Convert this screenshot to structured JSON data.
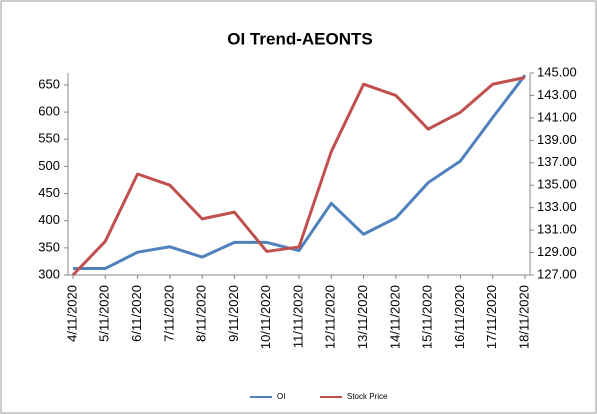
{
  "chart_data": {
    "type": "line",
    "title": "OI Trend-AEONTS",
    "categories": [
      "4/11/2020",
      "5/11/2020",
      "6/11/2020",
      "7/11/2020",
      "8/11/2020",
      "9/11/2020",
      "10/11/2020",
      "11/11/2020",
      "12/11/2020",
      "13/11/2020",
      "14/11/2020",
      "15/11/2020",
      "16/11/2020",
      "17/11/2020",
      "18/11/2020"
    ],
    "series": [
      {
        "name": "OI",
        "color": "#4f81bd",
        "values": [
          312,
          312,
          342,
          352,
          333,
          360,
          360,
          345,
          432,
          375,
          405,
          470,
          510,
          590,
          668
        ]
      },
      {
        "name": "Stock Price",
        "color": "#c0504d",
        "axis": "y2",
        "values": [
          127,
          130,
          136,
          135,
          132,
          132.6,
          129.1,
          129.5,
          138,
          144,
          143,
          140,
          141.5,
          144,
          144.6
        ]
      }
    ],
    "ylim": [
      300,
      672
    ],
    "yticks": [
      300,
      350,
      400,
      450,
      500,
      550,
      600,
      650
    ],
    "y2lim": [
      127,
      145
    ],
    "y2ticks": [
      {
        "value": 127,
        "label": "127.00"
      },
      {
        "value": 129,
        "label": "129.00"
      },
      {
        "value": 131,
        "label": "131.00"
      },
      {
        "value": 133,
        "label": "133.00"
      },
      {
        "value": 135,
        "label": "135.00"
      },
      {
        "value": 137,
        "label": "137.00"
      },
      {
        "value": 139,
        "label": "139.00"
      },
      {
        "value": 141,
        "label": "141.00"
      },
      {
        "value": 143,
        "label": "143.00"
      },
      {
        "value": 145,
        "label": "145.00"
      }
    ],
    "legend": "bottom",
    "grid": false
  }
}
